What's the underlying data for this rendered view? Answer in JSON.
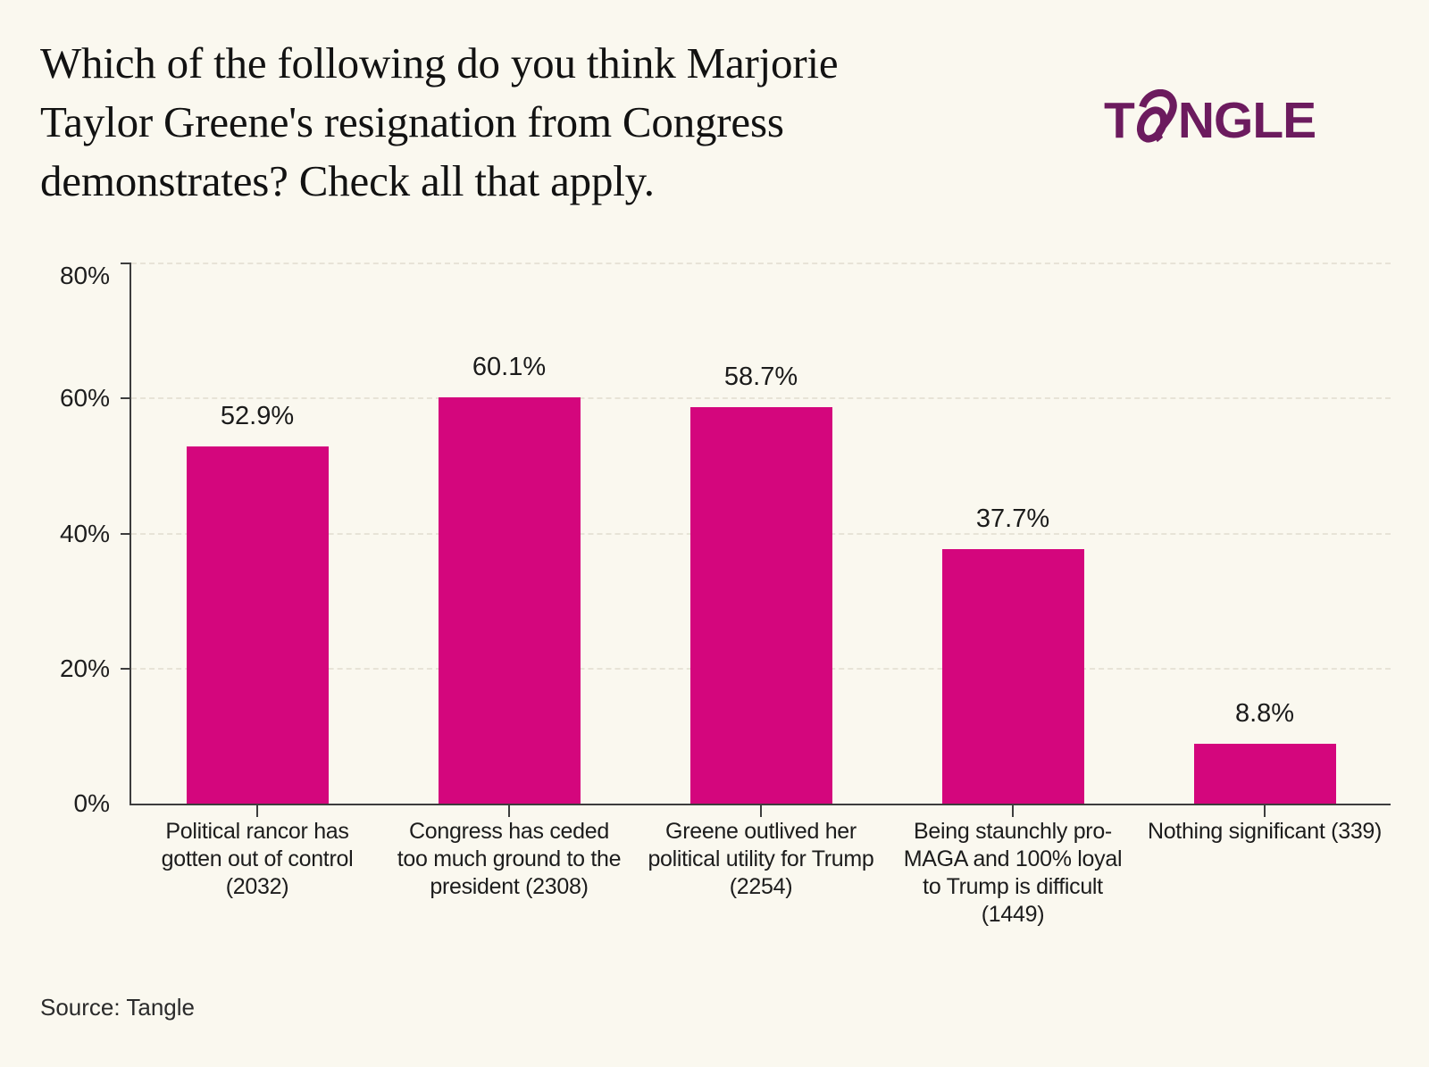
{
  "title_lines": [
    "Which of the following do you think Marjorie",
    "Taylor Greene's resignation from Congress",
    "demonstrates? Check all that apply."
  ],
  "logo": {
    "t": "T",
    "rest": "NGLE"
  },
  "source": "Source: Tangle",
  "colors": {
    "background": "#FAF8EF",
    "bar": "#D4067D",
    "logo": "#6C1B5E",
    "axis": "#3D3D3D",
    "grid": "#E7E3D7",
    "text": "#1B1B1B"
  },
  "chart_data": {
    "type": "bar",
    "title": "Which of the following do you think Marjorie Taylor Greene's resignation from Congress demonstrates? Check all that apply.",
    "categories": [
      "Political rancor has gotten out of control (2032)",
      "Congress has ceded too much ground to the president (2308)",
      "Greene outlived her political utility for Trump (2254)",
      "Being staunchly pro-MAGA and 100% loyal to Trump is difficult (1449)",
      "Nothing significant (339)"
    ],
    "values": [
      52.9,
      60.1,
      58.7,
      37.7,
      8.8
    ],
    "value_labels": [
      "52.9%",
      "60.1%",
      "58.7%",
      "37.7%",
      "8.8%"
    ],
    "counts": [
      2032,
      2308,
      2254,
      1449,
      339
    ],
    "xlabel": "",
    "ylabel": "",
    "ylim": [
      0,
      80
    ],
    "ytick_values": [
      0,
      20,
      40,
      60,
      80
    ],
    "ytick_labels": [
      "0%",
      "20%",
      "40%",
      "60%",
      "80%"
    ],
    "grid": "horizontal-dashed",
    "legend": false,
    "source": "Source: Tangle"
  }
}
